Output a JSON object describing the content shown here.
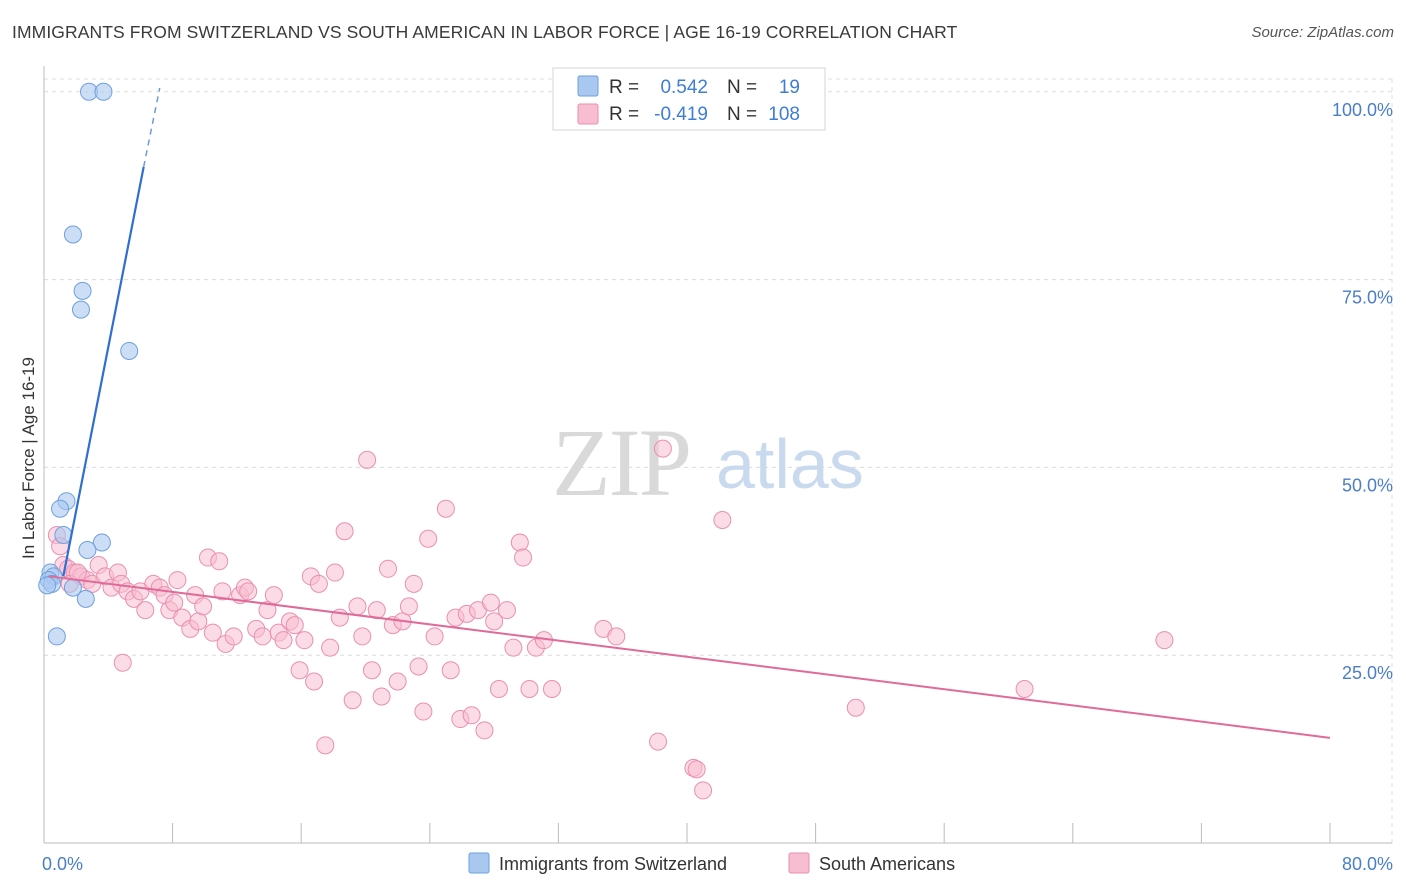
{
  "title": "IMMIGRANTS FROM SWITZERLAND VS SOUTH AMERICAN IN LABOR FORCE | AGE 16-19 CORRELATION CHART",
  "source": "Source: ZipAtlas.com",
  "watermark": {
    "zip": "ZIP",
    "atlas": "atlas"
  },
  "legend": {
    "rows": [
      {
        "r_label": "R =",
        "r_value": "0.542",
        "n_label": "N =",
        "n_value": "19"
      },
      {
        "r_label": "R =",
        "r_value": "-0.419",
        "n_label": "N =",
        "n_value": "108"
      }
    ]
  },
  "bottom_legend": {
    "series1": "Immigrants from Switzerland",
    "series2": "South Americans"
  },
  "colors": {
    "blue_fill": "#a9c8f0",
    "blue_stroke": "#6f9fdd",
    "blue_line": "#2f6fd0",
    "pink_fill": "#f7bdd0",
    "pink_stroke": "#ea8fb0",
    "pink_line": "#e06a98",
    "grid": "#dcdcdc",
    "tick_label": "#4a7ec9"
  },
  "chart_data": {
    "type": "scatter",
    "title": "IMMIGRANTS FROM SWITZERLAND VS SOUTH AMERICAN IN LABOR FORCE | AGE 16-19 CORRELATION CHART",
    "xlabel": "",
    "ylabel": "In Labor Force | Age 16-19",
    "xlim": [
      0,
      80
    ],
    "ylim": [
      0,
      102.5
    ],
    "x_tick_labels": [
      {
        "value": 0,
        "label": "0.0%"
      },
      {
        "value": 80,
        "label": "80.0%"
      }
    ],
    "y_tick_labels": [
      {
        "value": 25,
        "label": "25.0%"
      },
      {
        "value": 50,
        "label": "50.0%"
      },
      {
        "value": 75,
        "label": "75.0%"
      },
      {
        "value": 100,
        "label": "100.0%"
      }
    ],
    "x_minor_ticks": [
      0,
      8,
      16,
      24,
      32,
      40,
      48,
      56,
      64,
      72,
      80
    ],
    "series": [
      {
        "name": "Immigrants from Switzerland",
        "R": 0.542,
        "N": 19,
        "trend": {
          "x1": 1.2,
          "y1": 35.5,
          "x2": 6.2,
          "y2": 90.0,
          "dash_x2": 7.2,
          "dash_y2": 100.5
        },
        "points": [
          {
            "x": 2.8,
            "y": 100.0
          },
          {
            "x": 3.7,
            "y": 100.0
          },
          {
            "x": 1.8,
            "y": 81.0
          },
          {
            "x": 2.4,
            "y": 73.5
          },
          {
            "x": 2.3,
            "y": 71.0
          },
          {
            "x": 5.3,
            "y": 65.5
          },
          {
            "x": 1.4,
            "y": 45.5
          },
          {
            "x": 1.0,
            "y": 44.5
          },
          {
            "x": 1.2,
            "y": 41.0
          },
          {
            "x": 3.6,
            "y": 40.0
          },
          {
            "x": 2.7,
            "y": 39.0
          },
          {
            "x": 0.4,
            "y": 36.0
          },
          {
            "x": 0.6,
            "y": 35.5
          },
          {
            "x": 0.3,
            "y": 35.0
          },
          {
            "x": 0.5,
            "y": 34.5
          },
          {
            "x": 0.2,
            "y": 34.3
          },
          {
            "x": 1.8,
            "y": 34.0
          },
          {
            "x": 2.6,
            "y": 32.5
          },
          {
            "x": 0.8,
            "y": 27.5
          }
        ]
      },
      {
        "name": "South Americans",
        "R": -0.419,
        "N": 108,
        "trend": {
          "x1": 0.3,
          "y1": 35.5,
          "x2": 80,
          "y2": 14.0
        },
        "points": [
          {
            "x": 0.8,
            "y": 41.0
          },
          {
            "x": 1.0,
            "y": 39.5
          },
          {
            "x": 1.2,
            "y": 37.0
          },
          {
            "x": 1.5,
            "y": 36.5
          },
          {
            "x": 1.9,
            "y": 36.0
          },
          {
            "x": 2.3,
            "y": 35.5
          },
          {
            "x": 2.7,
            "y": 35.0
          },
          {
            "x": 3.0,
            "y": 34.5
          },
          {
            "x": 1.6,
            "y": 34.5
          },
          {
            "x": 2.1,
            "y": 36.0
          },
          {
            "x": 3.4,
            "y": 37.0
          },
          {
            "x": 3.8,
            "y": 35.5
          },
          {
            "x": 4.2,
            "y": 34.0
          },
          {
            "x": 4.6,
            "y": 36.0
          },
          {
            "x": 4.8,
            "y": 34.5
          },
          {
            "x": 5.2,
            "y": 33.5
          },
          {
            "x": 5.6,
            "y": 32.5
          },
          {
            "x": 6.0,
            "y": 33.5
          },
          {
            "x": 6.3,
            "y": 31.0
          },
          {
            "x": 6.8,
            "y": 34.5
          },
          {
            "x": 7.2,
            "y": 34.0
          },
          {
            "x": 7.5,
            "y": 33.0
          },
          {
            "x": 7.8,
            "y": 31.0
          },
          {
            "x": 8.1,
            "y": 32.0
          },
          {
            "x": 8.3,
            "y": 35.0
          },
          {
            "x": 8.6,
            "y": 30.0
          },
          {
            "x": 9.1,
            "y": 28.5
          },
          {
            "x": 9.4,
            "y": 33.0
          },
          {
            "x": 9.6,
            "y": 29.5
          },
          {
            "x": 9.9,
            "y": 31.5
          },
          {
            "x": 10.2,
            "y": 38.0
          },
          {
            "x": 10.5,
            "y": 28.0
          },
          {
            "x": 10.9,
            "y": 37.5
          },
          {
            "x": 11.1,
            "y": 33.5
          },
          {
            "x": 11.3,
            "y": 26.5
          },
          {
            "x": 11.8,
            "y": 27.5
          },
          {
            "x": 12.2,
            "y": 33.0
          },
          {
            "x": 12.5,
            "y": 34.0
          },
          {
            "x": 12.7,
            "y": 33.5
          },
          {
            "x": 13.2,
            "y": 28.5
          },
          {
            "x": 13.6,
            "y": 27.5
          },
          {
            "x": 13.9,
            "y": 31.0
          },
          {
            "x": 14.3,
            "y": 33.0
          },
          {
            "x": 14.6,
            "y": 28.0
          },
          {
            "x": 14.9,
            "y": 27.0
          },
          {
            "x": 15.3,
            "y": 29.5
          },
          {
            "x": 15.6,
            "y": 29.0
          },
          {
            "x": 15.9,
            "y": 23.0
          },
          {
            "x": 16.2,
            "y": 27.0
          },
          {
            "x": 16.6,
            "y": 35.5
          },
          {
            "x": 16.8,
            "y": 21.5
          },
          {
            "x": 17.1,
            "y": 34.5
          },
          {
            "x": 17.5,
            "y": 13.0
          },
          {
            "x": 17.8,
            "y": 26.0
          },
          {
            "x": 18.1,
            "y": 36.0
          },
          {
            "x": 18.4,
            "y": 30.0
          },
          {
            "x": 18.7,
            "y": 41.5
          },
          {
            "x": 19.2,
            "y": 19.0
          },
          {
            "x": 19.5,
            "y": 31.5
          },
          {
            "x": 19.8,
            "y": 27.5
          },
          {
            "x": 20.1,
            "y": 51.0
          },
          {
            "x": 20.4,
            "y": 23.0
          },
          {
            "x": 20.7,
            "y": 31.0
          },
          {
            "x": 21.0,
            "y": 19.5
          },
          {
            "x": 21.4,
            "y": 36.5
          },
          {
            "x": 21.7,
            "y": 29.0
          },
          {
            "x": 22.0,
            "y": 21.5
          },
          {
            "x": 22.3,
            "y": 29.5
          },
          {
            "x": 22.7,
            "y": 31.5
          },
          {
            "x": 23.0,
            "y": 34.5
          },
          {
            "x": 23.3,
            "y": 23.5
          },
          {
            "x": 23.6,
            "y": 17.5
          },
          {
            "x": 23.9,
            "y": 40.5
          },
          {
            "x": 24.3,
            "y": 27.5
          },
          {
            "x": 25.0,
            "y": 44.5
          },
          {
            "x": 25.3,
            "y": 23.0
          },
          {
            "x": 25.6,
            "y": 30.0
          },
          {
            "x": 25.9,
            "y": 16.5
          },
          {
            "x": 26.3,
            "y": 30.5
          },
          {
            "x": 26.6,
            "y": 17.0
          },
          {
            "x": 27.0,
            "y": 31.0
          },
          {
            "x": 27.4,
            "y": 15.0
          },
          {
            "x": 27.8,
            "y": 32.0
          },
          {
            "x": 28.0,
            "y": 29.5
          },
          {
            "x": 28.3,
            "y": 20.5
          },
          {
            "x": 28.8,
            "y": 31.0
          },
          {
            "x": 29.2,
            "y": 26.0
          },
          {
            "x": 29.6,
            "y": 40.0
          },
          {
            "x": 29.8,
            "y": 38.0
          },
          {
            "x": 30.2,
            "y": 20.5
          },
          {
            "x": 30.6,
            "y": 26.0
          },
          {
            "x": 31.1,
            "y": 27.0
          },
          {
            "x": 31.6,
            "y": 20.5
          },
          {
            "x": 34.8,
            "y": 28.5
          },
          {
            "x": 35.6,
            "y": 27.5
          },
          {
            "x": 38.5,
            "y": 52.5
          },
          {
            "x": 38.2,
            "y": 13.5
          },
          {
            "x": 40.4,
            "y": 10.0
          },
          {
            "x": 40.6,
            "y": 9.8
          },
          {
            "x": 41.0,
            "y": 7.0
          },
          {
            "x": 42.2,
            "y": 43.0
          },
          {
            "x": 50.5,
            "y": 18.0
          },
          {
            "x": 61.0,
            "y": 20.5
          },
          {
            "x": 69.7,
            "y": 27.0
          },
          {
            "x": 4.9,
            "y": 24.0
          }
        ]
      }
    ]
  }
}
